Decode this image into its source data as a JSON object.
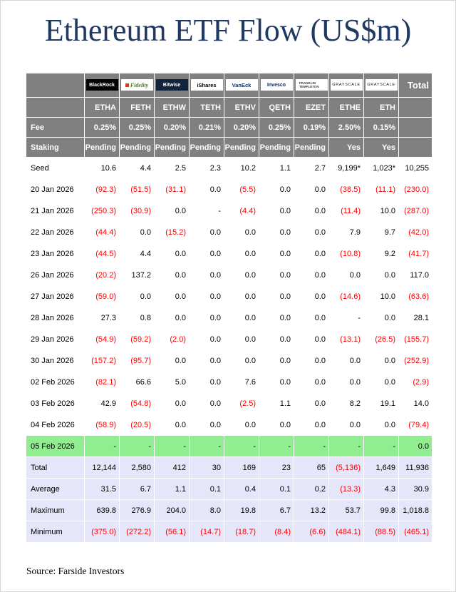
{
  "title": "Ethereum ETF Flow (US$m)",
  "source": "Source: Farside Investors",
  "colors": {
    "header_bg": "#808080",
    "header_text": "#ffffff",
    "negative": "#ff0000",
    "green_row_bg": "#90ee90",
    "summary_bg": "#e6e6fa",
    "title_color": "#1f3864"
  },
  "table": {
    "total_header": "Total",
    "providers": [
      {
        "id": "blackrock",
        "text": "BlackRock",
        "bg": "#000000",
        "fg": "#ffffff"
      },
      {
        "id": "fidelity",
        "text": "Fidelity",
        "bg": "#ffffff",
        "fg": "#477f1f",
        "accent": "#d6381c"
      },
      {
        "id": "bitwise",
        "text": "Bitwise",
        "bg": "#10243e",
        "fg": "#ffffff"
      },
      {
        "id": "ishares",
        "text": "iShares",
        "bg": "#ffffff",
        "fg": "#000000"
      },
      {
        "id": "vaneck",
        "text": "VanEck",
        "bg": "#ffffff",
        "fg": "#00349a"
      },
      {
        "id": "invesco",
        "text": "Invesco",
        "bg": "#ffffff",
        "fg": "#0b1f66"
      },
      {
        "id": "franklin",
        "text": "FRANKLIN TEMPLETON",
        "bg": "#ffffff",
        "fg": "#3a3a3a"
      },
      {
        "id": "grayscale",
        "text": "GRAYSCALE",
        "bg": "#ffffff",
        "fg": "#231f20"
      },
      {
        "id": "grayscale2",
        "text": "GRAYSCALE",
        "bg": "#ffffff",
        "fg": "#231f20"
      }
    ],
    "tickers": [
      "ETHA",
      "FETH",
      "ETHW",
      "TETH",
      "ETHV",
      "QETH",
      "EZET",
      "ETHE",
      "ETH"
    ],
    "fee_row": {
      "label": "Fee",
      "values": [
        "0.25%",
        "0.25%",
        "0.20%",
        "0.21%",
        "0.20%",
        "0.25%",
        "0.19%",
        "2.50%",
        "0.15%"
      ]
    },
    "staking_row": {
      "label": "Staking",
      "values": [
        "Pending",
        "Pending",
        "Pending",
        "Pending",
        "Pending",
        "Pending",
        "Pending",
        "Yes",
        "Yes"
      ]
    },
    "body_rows": [
      {
        "label": "Seed",
        "values": [
          "10.6",
          "4.4",
          "2.5",
          "2.3",
          "10.2",
          "1.1",
          "2.7",
          "9,199*",
          "1,023*"
        ],
        "total": "10,255",
        "type": "data"
      },
      {
        "label": "20 Jan 2026",
        "values": [
          "(92.3)",
          "(51.5)",
          "(31.1)",
          "0.0",
          "(5.5)",
          "0.0",
          "0.0",
          "(38.5)",
          "(11.1)"
        ],
        "total": "(230.0)",
        "type": "data"
      },
      {
        "label": "21 Jan 2026",
        "values": [
          "(250.3)",
          "(30.9)",
          "0.0",
          "-",
          "(4.4)",
          "0.0",
          "0.0",
          "(11.4)",
          "10.0"
        ],
        "total": "(287.0)",
        "type": "data"
      },
      {
        "label": "22 Jan 2026",
        "values": [
          "(44.4)",
          "0.0",
          "(15.2)",
          "0.0",
          "0.0",
          "0.0",
          "0.0",
          "7.9",
          "9.7"
        ],
        "total": "(42.0)",
        "type": "data"
      },
      {
        "label": "23 Jan 2026",
        "values": [
          "(44.5)",
          "4.4",
          "0.0",
          "0.0",
          "0.0",
          "0.0",
          "0.0",
          "(10.8)",
          "9.2"
        ],
        "total": "(41.7)",
        "type": "data"
      },
      {
        "label": "26 Jan 2026",
        "values": [
          "(20.2)",
          "137.2",
          "0.0",
          "0.0",
          "0.0",
          "0.0",
          "0.0",
          "0.0",
          "0.0"
        ],
        "total": "117.0",
        "type": "data"
      },
      {
        "label": "27 Jan 2026",
        "values": [
          "(59.0)",
          "0.0",
          "0.0",
          "0.0",
          "0.0",
          "0.0",
          "0.0",
          "(14.6)",
          "10.0"
        ],
        "total": "(63.6)",
        "type": "data"
      },
      {
        "label": "28 Jan 2026",
        "values": [
          "27.3",
          "0.8",
          "0.0",
          "0.0",
          "0.0",
          "0.0",
          "0.0",
          "-",
          "0.0"
        ],
        "total": "28.1",
        "type": "data"
      },
      {
        "label": "29 Jan 2026",
        "values": [
          "(54.9)",
          "(59.2)",
          "(2.0)",
          "0.0",
          "0.0",
          "0.0",
          "0.0",
          "(13.1)",
          "(26.5)"
        ],
        "total": "(155.7)",
        "type": "data"
      },
      {
        "label": "30 Jan 2026",
        "values": [
          "(157.2)",
          "(95.7)",
          "0.0",
          "0.0",
          "0.0",
          "0.0",
          "0.0",
          "0.0",
          "0.0"
        ],
        "total": "(252.9)",
        "type": "data"
      },
      {
        "label": "02 Feb 2026",
        "values": [
          "(82.1)",
          "66.6",
          "5.0",
          "0.0",
          "7.6",
          "0.0",
          "0.0",
          "0.0",
          "0.0"
        ],
        "total": "(2.9)",
        "type": "data"
      },
      {
        "label": "03 Feb 2026",
        "values": [
          "42.9",
          "(54.8)",
          "0.0",
          "0.0",
          "(2.5)",
          "1.1",
          "0.0",
          "8.2",
          "19.1"
        ],
        "total": "14.0",
        "type": "data"
      },
      {
        "label": "04 Feb 2026",
        "values": [
          "(58.9)",
          "(20.5)",
          "0.0",
          "0.0",
          "0.0",
          "0.0",
          "0.0",
          "0.0",
          "0.0"
        ],
        "total": "(79.4)",
        "type": "data"
      },
      {
        "label": "05 Feb 2026",
        "values": [
          "-",
          "-",
          "-",
          "-",
          "-",
          "-",
          "-",
          "-",
          "-"
        ],
        "total": "0.0",
        "type": "green"
      },
      {
        "label": "Total",
        "values": [
          "12,144",
          "2,580",
          "412",
          "30",
          "169",
          "23",
          "65",
          "(5,136)",
          "1,649"
        ],
        "total": "11,936",
        "type": "summary"
      },
      {
        "label": "Average",
        "values": [
          "31.5",
          "6.7",
          "1.1",
          "0.1",
          "0.4",
          "0.1",
          "0.2",
          "(13.3)",
          "4.3"
        ],
        "total": "30.9",
        "type": "summary"
      },
      {
        "label": "Maximum",
        "values": [
          "639.8",
          "276.9",
          "204.0",
          "8.0",
          "19.8",
          "6.7",
          "13.2",
          "53.7",
          "99.8"
        ],
        "total": "1,018.8",
        "type": "summary"
      },
      {
        "label": "Minimum",
        "values": [
          "(375.0)",
          "(272.2)",
          "(56.1)",
          "(14.7)",
          "(18.7)",
          "(8.4)",
          "(6.6)",
          "(484.1)",
          "(88.5)"
        ],
        "total": "(465.1)",
        "type": "summary"
      }
    ]
  }
}
